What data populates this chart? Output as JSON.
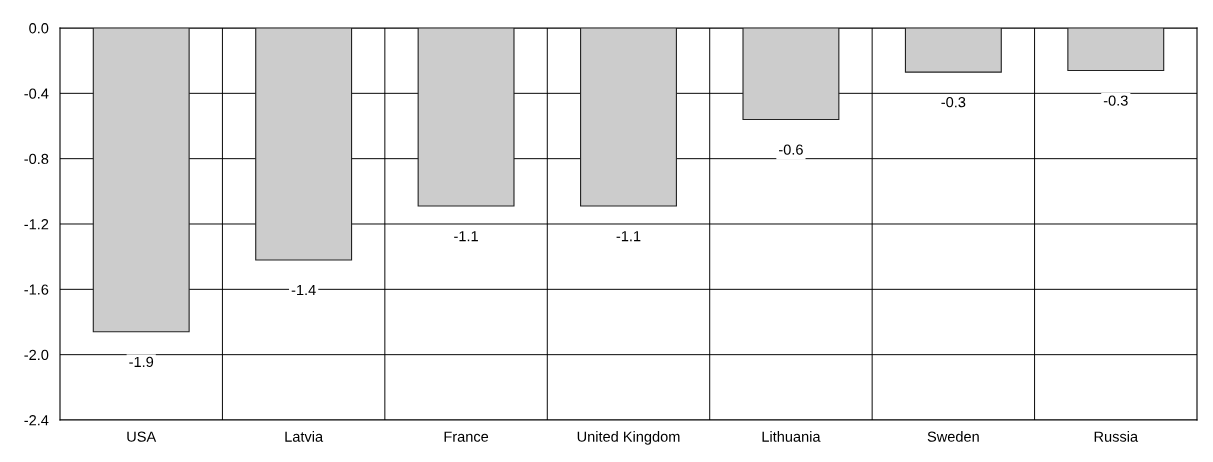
{
  "chart_data": {
    "type": "bar",
    "categories": [
      "USA",
      "Latvia",
      "France",
      "United Kingdom",
      "Lithuania",
      "Sweden",
      "Russia"
    ],
    "values": [
      -1.86,
      -1.42,
      -1.09,
      -1.09,
      -0.56,
      -0.27,
      -0.26
    ],
    "value_labels": [
      "-1.9",
      "-1.4",
      "-1.1",
      "-1.1",
      "-0.6",
      "-0.3",
      "-0.3"
    ],
    "color": "#cccccc",
    "ylim": [
      -2.4,
      0
    ],
    "yticks": [
      {
        "value": 0,
        "label": "0.0"
      },
      {
        "value": -0.4,
        "label": "-0.4"
      },
      {
        "value": -0.8,
        "label": "-0.8"
      },
      {
        "value": -1.2,
        "label": "-1.2"
      },
      {
        "value": -1.6,
        "label": "-1.6"
      },
      {
        "value": -2.0,
        "label": "-2.0"
      },
      {
        "value": -2.4,
        "label": "-2.4"
      }
    ],
    "grid": true
  }
}
